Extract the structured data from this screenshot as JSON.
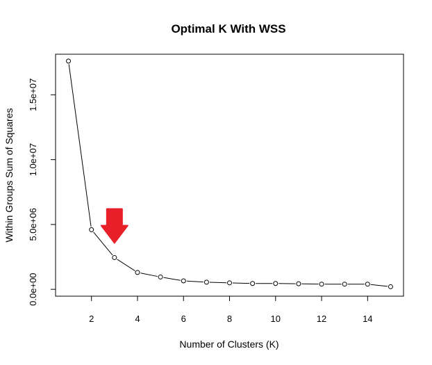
{
  "chart_data": {
    "type": "line",
    "title": "Optimal K With WSS",
    "xlabel": "Number of Clusters (K)",
    "ylabel": "Within Groups Sum of Squares",
    "x": [
      1,
      2,
      3,
      4,
      5,
      6,
      7,
      8,
      9,
      10,
      11,
      12,
      13,
      14,
      15
    ],
    "values": [
      17600000,
      4600000,
      2450000,
      1300000,
      950000,
      650000,
      550000,
      500000,
      450000,
      450000,
      430000,
      400000,
      400000,
      400000,
      200000
    ],
    "xlim": [
      0.44,
      15.56
    ],
    "ylim": [
      -528000,
      18128000
    ],
    "x_ticks": [
      2,
      4,
      6,
      8,
      10,
      12,
      14
    ],
    "x_tick_labels": [
      "2",
      "4",
      "6",
      "8",
      "10",
      "12",
      "14"
    ],
    "y_ticks": [
      0,
      5000000,
      10000000,
      15000000
    ],
    "y_tick_labels": [
      "0.0e+00",
      "5.0e+06",
      "1.0e+07",
      "1.5e+07"
    ],
    "marker": "open-circle",
    "line_color": "#000000",
    "grid": false,
    "legend": "none",
    "annotation": {
      "shape": "down-arrow",
      "color": "#e8202a",
      "points_to_x": 3
    }
  }
}
